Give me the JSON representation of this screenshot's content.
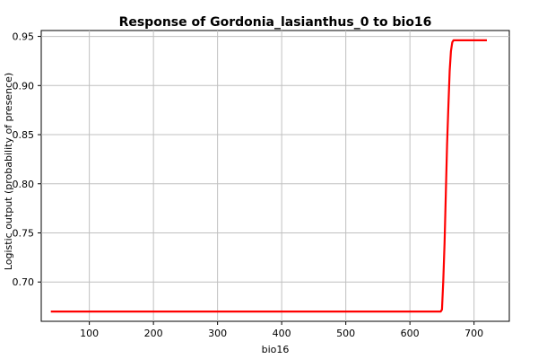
{
  "chart_data": {
    "type": "line",
    "title": "Response of Gordonia_lasianthus_0 to bio16",
    "xlabel": "bio16",
    "ylabel": "Logistic output (probability of presence)",
    "xlim": [
      25,
      755
    ],
    "ylim": [
      0.66,
      0.956
    ],
    "xticks": [
      100,
      200,
      300,
      400,
      500,
      600,
      700
    ],
    "yticks": [
      0.7,
      0.75,
      0.8,
      0.85,
      0.9,
      0.95
    ],
    "xtick_labels": [
      "100",
      "200",
      "300",
      "400",
      "500",
      "600",
      "700"
    ],
    "ytick_labels": [
      "0.70",
      "0.75",
      "0.80",
      "0.85",
      "0.90",
      "0.95"
    ],
    "grid": true,
    "series": [
      {
        "color": "#ff0000",
        "x": [
          40,
          648,
          650,
          652,
          654,
          656,
          658,
          660,
          662,
          664,
          666,
          668,
          720
        ],
        "y": [
          0.67,
          0.67,
          0.672,
          0.7,
          0.74,
          0.79,
          0.84,
          0.88,
          0.915,
          0.935,
          0.944,
          0.946,
          0.946
        ]
      }
    ]
  }
}
